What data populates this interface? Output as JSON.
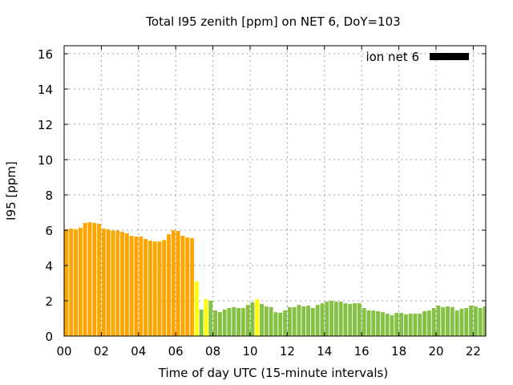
{
  "chart_data": {
    "type": "bar",
    "title": "Total I95 zenith [ppm] on NET 6, DoY=103",
    "xlabel": "Time of day UTC (15-minute intervals)",
    "ylabel": "I95 [ppm]",
    "ylim": [
      0,
      16.45
    ],
    "xlim_hours": [
      0,
      22.65
    ],
    "grid": true,
    "legend": {
      "label": "ion net 6",
      "placement": "top-right",
      "color": "#000000"
    },
    "x_tick_labels": [
      "00",
      "02",
      "04",
      "06",
      "08",
      "10",
      "12",
      "14",
      "16",
      "18",
      "20",
      "22"
    ],
    "x_tick_hours": [
      0,
      2,
      4,
      6,
      8,
      10,
      12,
      14,
      16,
      18,
      20,
      22
    ],
    "y_tick_labels": [
      "0",
      "2",
      "4",
      "6",
      "8",
      "10",
      "12",
      "14",
      "16"
    ],
    "y_ticks": [
      0,
      2,
      4,
      6,
      8,
      10,
      12,
      14,
      16
    ],
    "interval_minutes": 15,
    "colors": {
      "high": "#ffa500",
      "medium": "#ffff00",
      "low": "#86c145"
    },
    "series": [
      {
        "name": "ion net 6",
        "values": [
          6.05,
          6.09,
          6.06,
          6.14,
          6.41,
          6.45,
          6.42,
          6.36,
          6.09,
          6.05,
          5.97,
          5.98,
          5.91,
          5.82,
          5.68,
          5.64,
          5.64,
          5.5,
          5.41,
          5.36,
          5.36,
          5.45,
          5.77,
          6.0,
          5.95,
          5.68,
          5.59,
          5.55,
          3.09,
          1.5,
          2.09,
          2.0,
          1.45,
          1.36,
          1.5,
          1.59,
          1.64,
          1.59,
          1.59,
          1.77,
          1.91,
          2.09,
          1.82,
          1.68,
          1.64,
          1.36,
          1.32,
          1.45,
          1.64,
          1.64,
          1.77,
          1.68,
          1.73,
          1.59,
          1.77,
          1.86,
          1.95,
          2.0,
          1.95,
          1.95,
          1.86,
          1.82,
          1.86,
          1.86,
          1.59,
          1.45,
          1.45,
          1.41,
          1.36,
          1.27,
          1.18,
          1.32,
          1.32,
          1.23,
          1.27,
          1.27,
          1.27,
          1.41,
          1.45,
          1.59,
          1.73,
          1.64,
          1.68,
          1.64,
          1.45,
          1.55,
          1.59,
          1.73,
          1.68,
          1.59,
          1.68
        ],
        "categories": [
          "high",
          "high",
          "high",
          "high",
          "high",
          "high",
          "high",
          "high",
          "high",
          "high",
          "high",
          "high",
          "high",
          "high",
          "high",
          "high",
          "high",
          "high",
          "high",
          "high",
          "high",
          "high",
          "high",
          "high",
          "high",
          "high",
          "high",
          "high",
          "medium",
          "low",
          "medium",
          "low",
          "low",
          "low",
          "low",
          "low",
          "low",
          "low",
          "low",
          "low",
          "low",
          "medium",
          "low",
          "low",
          "low",
          "low",
          "low",
          "low",
          "low",
          "low",
          "low",
          "low",
          "low",
          "low",
          "low",
          "low",
          "low",
          "low",
          "low",
          "low",
          "low",
          "low",
          "low",
          "low",
          "low",
          "low",
          "low",
          "low",
          "low",
          "low",
          "low",
          "low",
          "low",
          "low",
          "low",
          "low",
          "low",
          "low",
          "low",
          "low",
          "low",
          "low",
          "low",
          "low",
          "low",
          "low",
          "low",
          "low",
          "low",
          "low",
          "low"
        ]
      }
    ]
  }
}
